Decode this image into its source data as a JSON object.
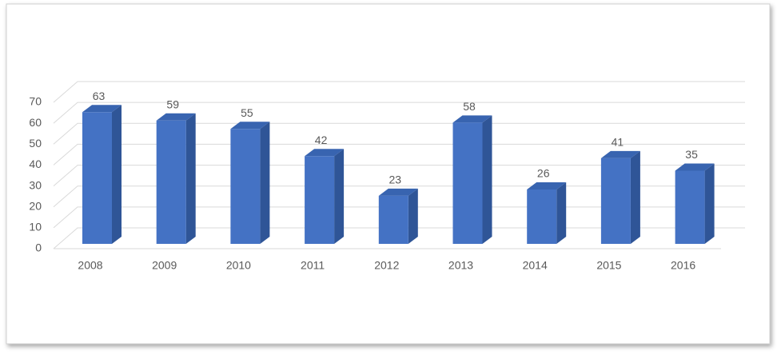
{
  "chart_data": {
    "type": "bar",
    "categories": [
      "2008",
      "2009",
      "2010",
      "2011",
      "2012",
      "2013",
      "2014",
      "2015",
      "2016"
    ],
    "values": [
      63,
      59,
      55,
      42,
      23,
      58,
      26,
      41,
      35
    ],
    "color": "#4472c4",
    "ylim": [
      0,
      70
    ],
    "yticks": [
      0,
      10,
      20,
      30,
      40,
      50,
      60,
      70
    ],
    "grid": true
  }
}
